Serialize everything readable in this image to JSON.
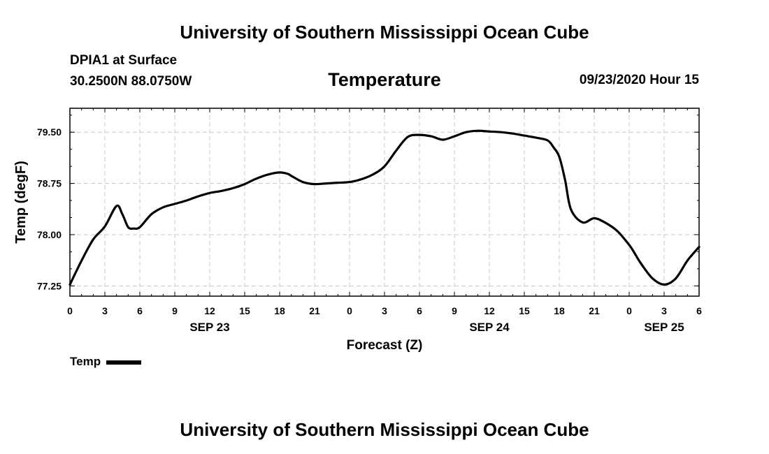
{
  "header": {
    "title": "University of Southern Mississippi Ocean Cube",
    "station_name": "DPIA1 at Surface",
    "location": "30.2500N 88.0750W",
    "valid_time": "09/23/2020 Hour 15"
  },
  "footer": {
    "title": "University of Southern Mississippi Ocean Cube"
  },
  "legend": {
    "label": "Temp"
  },
  "chart_data": {
    "type": "line",
    "title": "Temperature",
    "xlabel": "Forecast (Z)",
    "ylabel": "Temp (degF)",
    "xlim": [
      0,
      54
    ],
    "ylim": [
      77.1,
      79.85
    ],
    "grid": true,
    "x_ticks": [
      {
        "hour": 0,
        "label": "0"
      },
      {
        "hour": 3,
        "label": "3"
      },
      {
        "hour": 6,
        "label": "6"
      },
      {
        "hour": 9,
        "label": "9"
      },
      {
        "hour": 12,
        "label": "12"
      },
      {
        "hour": 15,
        "label": "15"
      },
      {
        "hour": 18,
        "label": "18"
      },
      {
        "hour": 21,
        "label": "21"
      },
      {
        "hour": 24,
        "label": "0"
      },
      {
        "hour": 27,
        "label": "3"
      },
      {
        "hour": 30,
        "label": "6"
      },
      {
        "hour": 33,
        "label": "9"
      },
      {
        "hour": 36,
        "label": "12"
      },
      {
        "hour": 39,
        "label": "15"
      },
      {
        "hour": 42,
        "label": "18"
      },
      {
        "hour": 45,
        "label": "21"
      },
      {
        "hour": 48,
        "label": "0"
      },
      {
        "hour": 51,
        "label": "3"
      },
      {
        "hour": 54,
        "label": "6"
      }
    ],
    "date_labels": [
      {
        "hour": 12,
        "label": "SEP 23"
      },
      {
        "hour": 36,
        "label": "SEP 24"
      },
      {
        "hour": 51,
        "label": "SEP 25"
      }
    ],
    "y_ticks": [
      77.25,
      78.0,
      78.75,
      79.5
    ],
    "y_tick_labels": [
      "77.25",
      "78.00",
      "78.75",
      "79.50"
    ],
    "series": [
      {
        "name": "Temp",
        "x": [
          0,
          1,
          2,
          3,
          4,
          4.5,
          5,
          5.5,
          6,
          7,
          8,
          9,
          10,
          11,
          12,
          13,
          14,
          15,
          16,
          17,
          18,
          18.7,
          19,
          20,
          21,
          22,
          23,
          24,
          25,
          26,
          27,
          28,
          29,
          30,
          31,
          32,
          33,
          34,
          35,
          36,
          37,
          38,
          39,
          40,
          41,
          41.5,
          42,
          42.5,
          43,
          44,
          45,
          46,
          47,
          48,
          48.5,
          49,
          50,
          51,
          52,
          53,
          54
        ],
        "y": [
          77.27,
          77.62,
          77.93,
          78.12,
          78.42,
          78.3,
          78.11,
          78.09,
          78.11,
          78.3,
          78.4,
          78.45,
          78.5,
          78.56,
          78.61,
          78.64,
          78.68,
          78.74,
          78.82,
          78.88,
          78.91,
          78.89,
          78.86,
          78.77,
          78.74,
          78.75,
          78.76,
          78.77,
          78.81,
          78.88,
          79.0,
          79.23,
          79.43,
          79.46,
          79.44,
          79.39,
          79.44,
          79.5,
          79.52,
          79.51,
          79.5,
          79.48,
          79.45,
          79.42,
          79.38,
          79.28,
          79.14,
          78.8,
          78.37,
          78.18,
          78.24,
          78.17,
          78.05,
          77.85,
          77.72,
          77.58,
          77.36,
          77.27,
          77.36,
          77.62,
          77.82
        ]
      }
    ]
  }
}
